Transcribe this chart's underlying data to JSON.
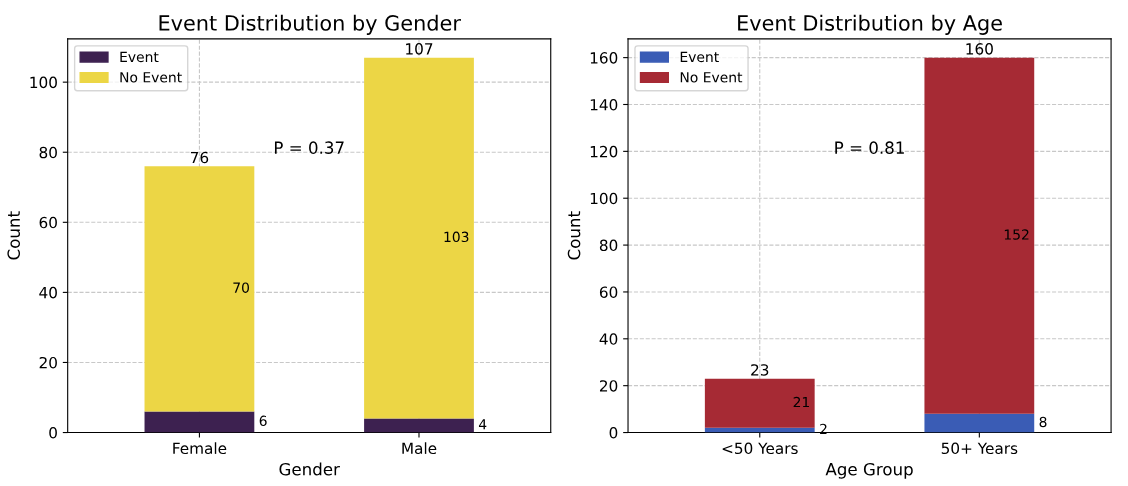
{
  "chart_data": [
    {
      "type": "bar",
      "stacked": true,
      "title": "Event Distribution by Gender",
      "xlabel": "Gender",
      "ylabel": "Count",
      "categories": [
        "Female",
        "Male"
      ],
      "series": [
        {
          "name": "Event",
          "color": "#3d2150",
          "values": [
            6,
            4
          ]
        },
        {
          "name": "No Event",
          "color": "#ecd645",
          "values": [
            70,
            103
          ]
        }
      ],
      "data_labels": true,
      "totals": [
        "76",
        "107"
      ],
      "annotations": [
        "P = 0.37"
      ],
      "ylim": [
        0,
        112.35
      ],
      "yticks": [
        0,
        20,
        40,
        60,
        80,
        100
      ],
      "grid": true,
      "legend": "top left"
    },
    {
      "type": "bar",
      "stacked": true,
      "title": "Event Distribution by Age",
      "xlabel": "Age Group",
      "ylabel": "Count",
      "categories": [
        "<50 Years",
        "50+ Years"
      ],
      "series": [
        {
          "name": "Event",
          "color": "#3a5cb5",
          "values": [
            2,
            8
          ]
        },
        {
          "name": "No Event",
          "color": "#a62a34",
          "values": [
            21,
            152
          ]
        }
      ],
      "data_labels": true,
      "totals": [
        "23",
        "160"
      ],
      "annotations": [
        "P = 0.81"
      ],
      "ylim": [
        0,
        168
      ],
      "yticks": [
        0,
        20,
        40,
        60,
        80,
        100,
        120,
        140,
        160
      ],
      "grid": true,
      "legend": "top left"
    }
  ]
}
